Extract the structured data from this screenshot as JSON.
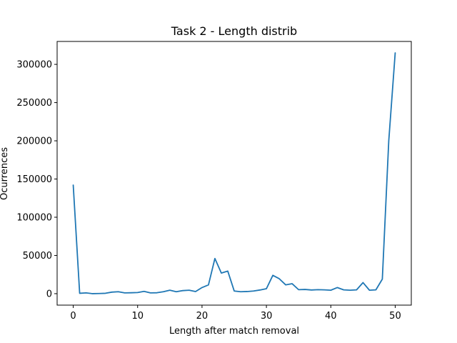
{
  "chart_data": {
    "type": "line",
    "title": "Task 2 - Length distrib",
    "xlabel": "Length  after match removal",
    "ylabel": "Ocurrences",
    "xlim": [
      -2.5,
      52.5
    ],
    "ylim": [
      -15000,
      330000
    ],
    "xticks": [
      0,
      10,
      20,
      30,
      40,
      50
    ],
    "yticks": [
      0,
      50000,
      100000,
      150000,
      200000,
      250000,
      300000
    ],
    "grid": false,
    "legend": "none",
    "series": [
      {
        "color": "#1f77b4",
        "x": [
          0,
          1,
          2,
          3,
          4,
          5,
          6,
          7,
          8,
          9,
          10,
          11,
          12,
          13,
          14,
          15,
          16,
          17,
          18,
          19,
          20,
          21,
          22,
          23,
          24,
          25,
          26,
          27,
          28,
          29,
          30,
          31,
          32,
          33,
          34,
          35,
          36,
          37,
          38,
          39,
          40,
          41,
          42,
          43,
          44,
          45,
          46,
          47,
          48,
          49,
          50
        ],
        "y": [
          142000,
          500,
          1000,
          0,
          200,
          500,
          2000,
          2500,
          1000,
          1200,
          1500,
          3000,
          1000,
          1200,
          2500,
          4500,
          2500,
          4000,
          4500,
          2800,
          8000,
          11500,
          46000,
          27000,
          29500,
          3500,
          2500,
          2800,
          3500,
          4800,
          6500,
          24000,
          19500,
          11500,
          13000,
          5200,
          5500,
          4800,
          5200,
          5000,
          4500,
          8000,
          5000,
          4500,
          5000,
          14500,
          4500,
          5000,
          19000,
          200000,
          315000
        ]
      }
    ]
  }
}
